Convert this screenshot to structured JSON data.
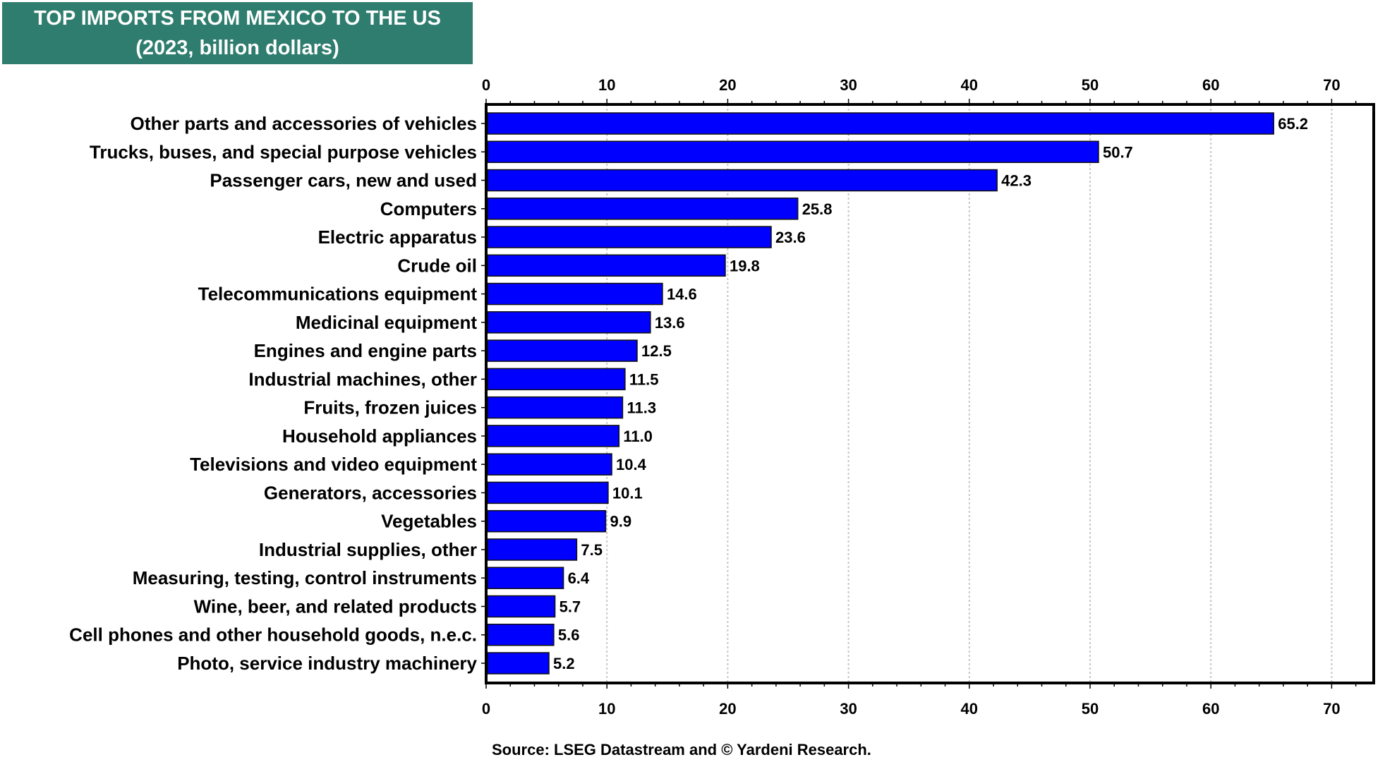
{
  "chart_data": {
    "type": "bar",
    "orientation": "horizontal",
    "title": "TOP IMPORTS FROM MEXICO TO THE US",
    "subtitle": "(2023, billion dollars)",
    "xlabel": "",
    "ylabel": "",
    "xlim": [
      0,
      73
    ],
    "xticks": [
      0,
      10,
      20,
      30,
      40,
      50,
      60,
      70
    ],
    "grid": true,
    "categories": [
      "Other parts and accessories of vehicles",
      "Trucks, buses, and special purpose vehicles",
      "Passenger cars, new and used",
      "Computers",
      "Electric apparatus",
      "Crude oil",
      "Telecommunications equipment",
      "Medicinal equipment",
      "Engines and engine parts",
      "Industrial machines, other",
      "Fruits, frozen juices",
      "Household appliances",
      "Televisions and video equipment",
      "Generators, accessories",
      "Vegetables",
      "Industrial supplies, other",
      "Measuring, testing, control instruments",
      "Wine, beer, and related products",
      "Cell phones and other household goods, n.e.c.",
      "Photo, service industry machinery"
    ],
    "values": [
      65.2,
      50.7,
      42.3,
      25.8,
      23.6,
      19.8,
      14.6,
      13.6,
      12.5,
      11.5,
      11.3,
      11.0,
      10.4,
      10.1,
      9.9,
      7.5,
      6.4,
      5.7,
      5.6,
      5.2
    ],
    "value_labels": [
      "65.2",
      "50.7",
      "42.3",
      "25.8",
      "23.6",
      "19.8",
      "14.6",
      "13.6",
      "12.5",
      "11.5",
      "11.3",
      "11.0",
      "10.4",
      "10.1",
      "9.9",
      "7.5",
      "6.4",
      "5.7",
      "5.6",
      "5.2"
    ],
    "source": "Source: LSEG Datastream and © Yardeni Research.",
    "colors": {
      "bar": "#0000FF",
      "title_bg": "#2E7D6E"
    }
  }
}
